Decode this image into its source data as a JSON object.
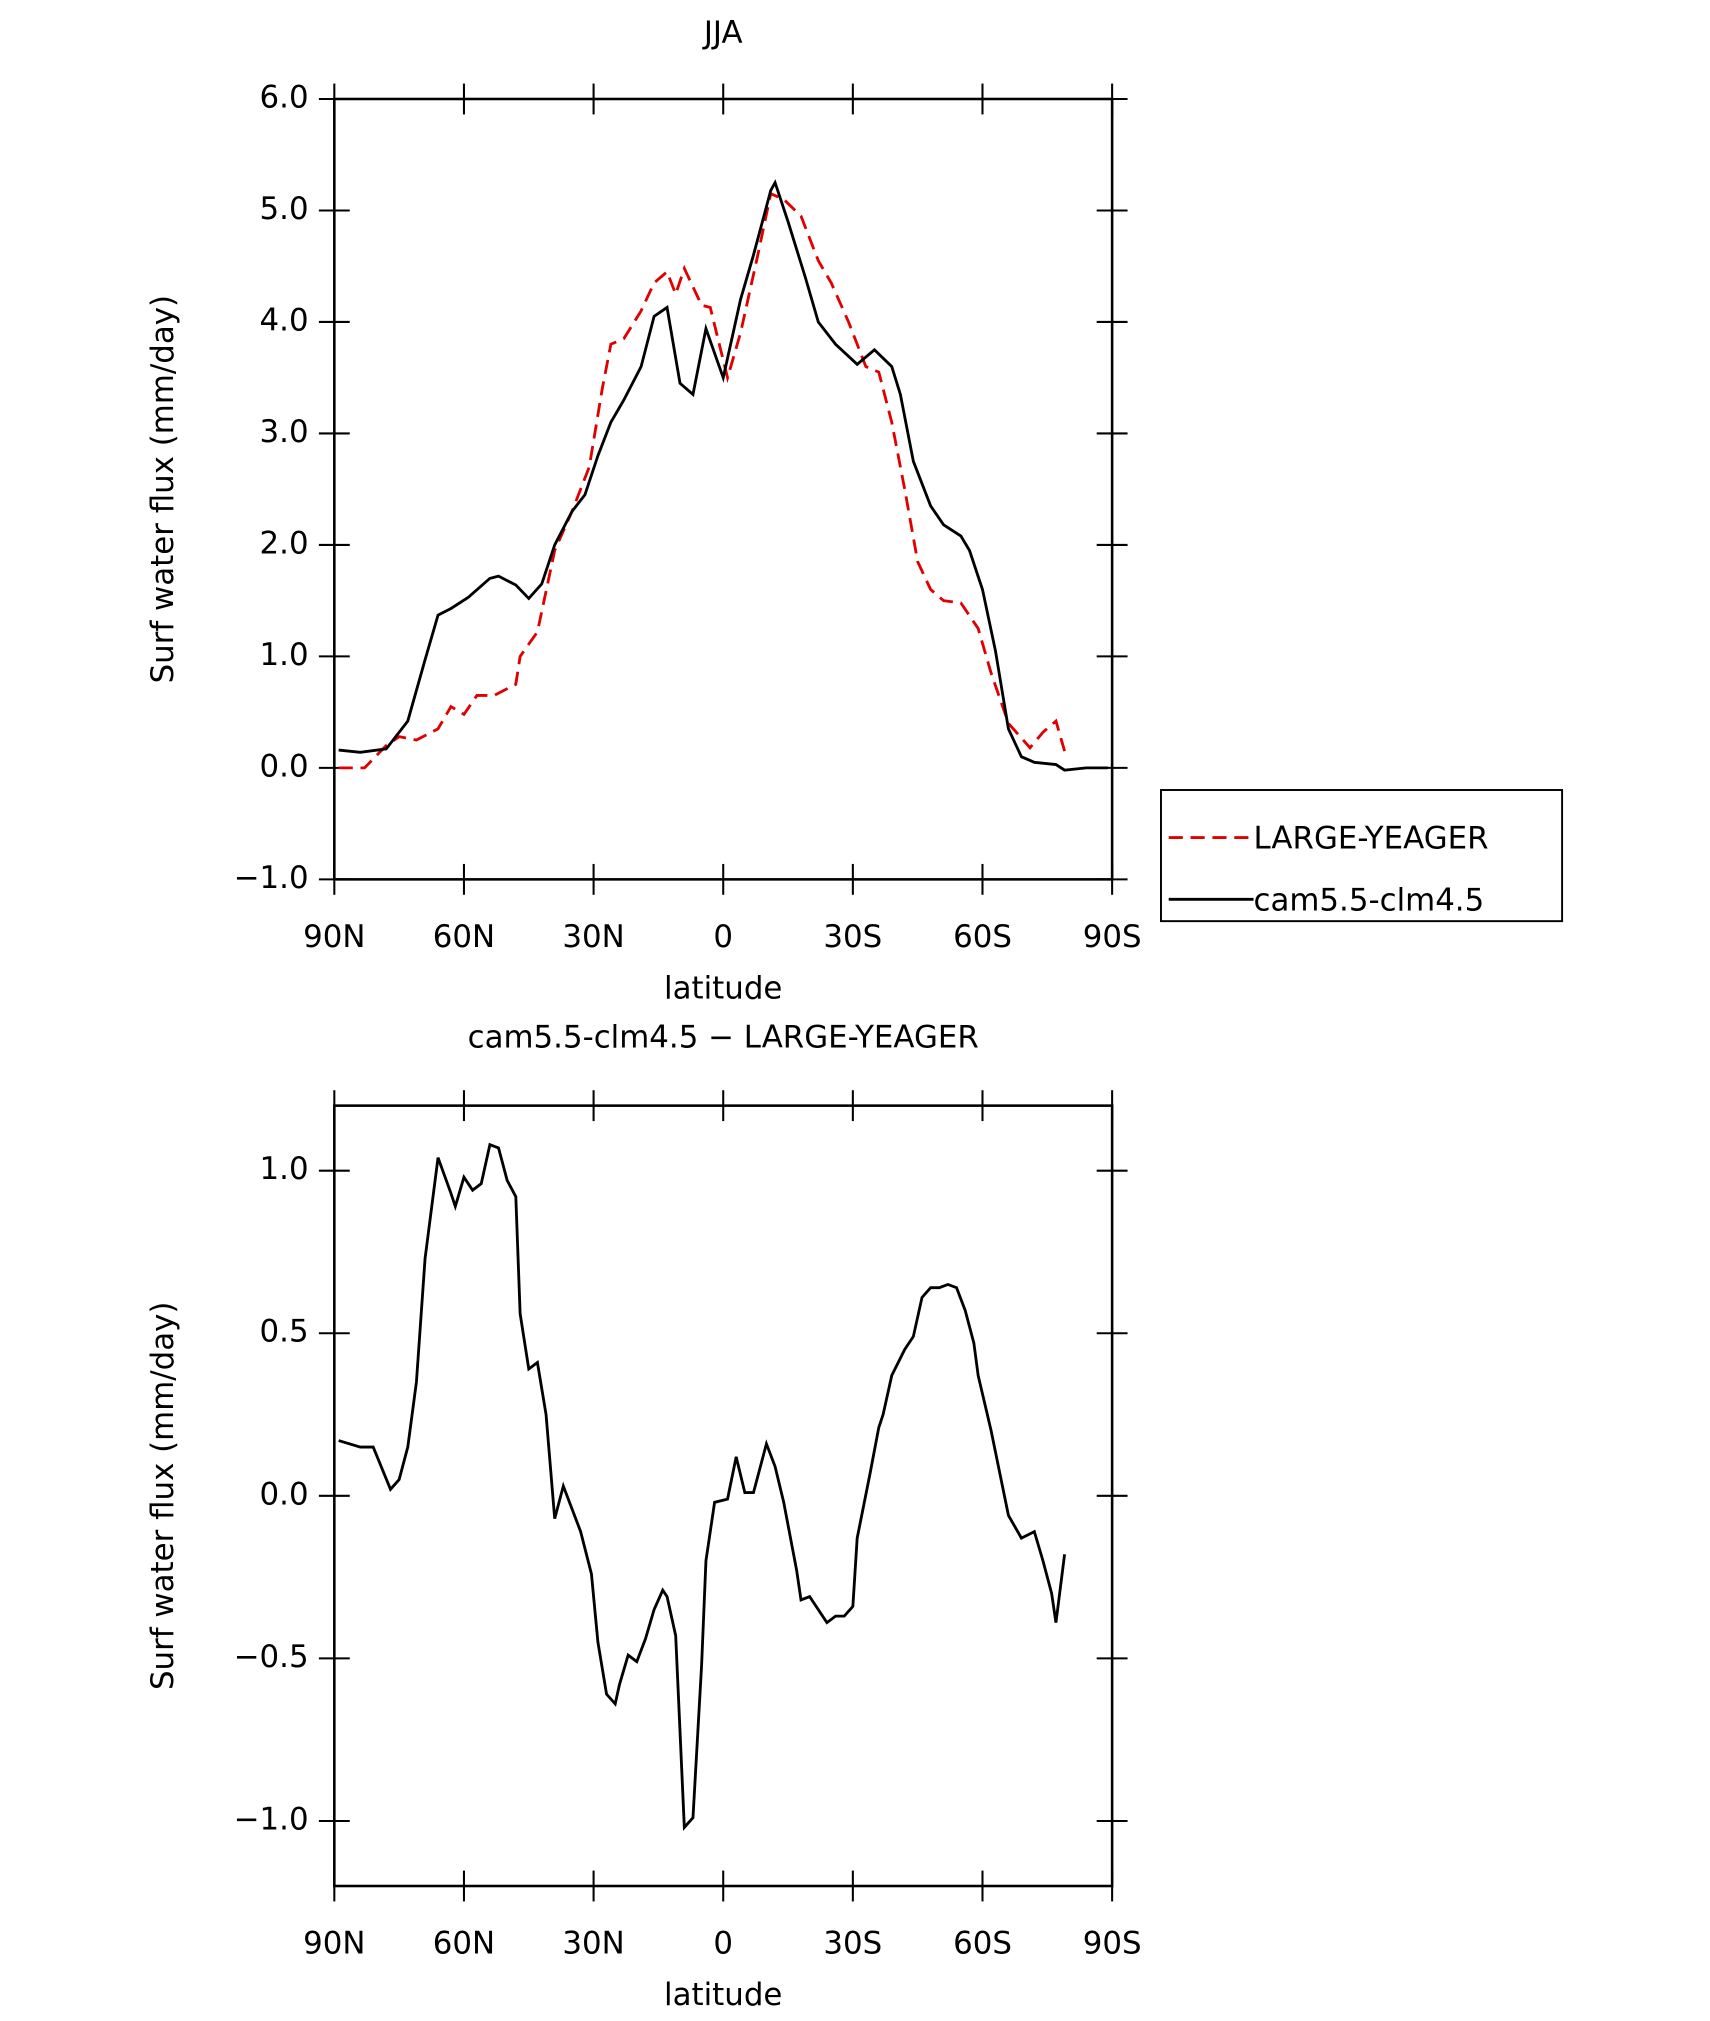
{
  "chart_data": [
    {
      "type": "line",
      "title": "JJA",
      "xlabel": "latitude",
      "ylabel": "Surf water flux (mm/day)",
      "xlim": [
        90,
        -90
      ],
      "ylim": [
        -1,
        6
      ],
      "xticks": [
        {
          "value": 90,
          "label": "90N"
        },
        {
          "value": 60,
          "label": "60N"
        },
        {
          "value": 30,
          "label": "30N"
        },
        0,
        {
          "value": -30,
          "label": "30S"
        },
        {
          "value": -60,
          "label": "60S"
        },
        {
          "value": -90,
          "label": "90S"
        }
      ],
      "yticks": [
        {
          "value": -1,
          "label": "−1.0"
        },
        {
          "value": 0,
          "label": "0.0"
        },
        {
          "value": 1,
          "label": "1.0"
        },
        {
          "value": 2,
          "label": "2.0"
        },
        {
          "value": 3,
          "label": "3.0"
        },
        {
          "value": 4,
          "label": "4.0"
        },
        {
          "value": 5,
          "label": "5.0"
        },
        {
          "value": 6,
          "label": "6.0"
        }
      ],
      "legend": "right",
      "series": [
        {
          "name": "LARGE-YEAGER",
          "color": "#e00000",
          "dashed": true,
          "x": [
            89,
            83,
            78,
            75,
            71,
            66,
            63,
            60,
            57,
            53,
            48,
            47,
            43,
            39,
            35,
            31,
            28,
            26,
            23,
            19,
            16,
            13,
            11,
            9,
            5,
            3,
            -1,
            -4,
            -8,
            -11,
            -14,
            -18,
            -22,
            -25,
            -29,
            -33,
            -36,
            -39,
            -42,
            -45,
            -48,
            -51,
            -55,
            -59,
            -62,
            -66,
            -71,
            -74,
            -77,
            -79
          ],
          "values": [
            0,
            0,
            0.2,
            0.28,
            0.25,
            0.35,
            0.55,
            0.48,
            0.65,
            0.65,
            0.75,
            1.0,
            1.22,
            1.95,
            2.3,
            2.7,
            3.4,
            3.8,
            3.85,
            4.1,
            4.35,
            4.45,
            4.25,
            4.48,
            4.15,
            4.13,
            3.5,
            3.9,
            4.6,
            5.15,
            5.1,
            4.95,
            4.55,
            4.35,
            4.0,
            3.6,
            3.55,
            3.1,
            2.5,
            1.85,
            1.6,
            1.5,
            1.48,
            1.25,
            0.85,
            0.4,
            0.18,
            0.32,
            0.42,
            0.15
          ]
        },
        {
          "name": "cam5.5-clm4.5",
          "color": "#000000",
          "dashed": false,
          "x": [
            89,
            84,
            78,
            73,
            69,
            66,
            63,
            59,
            54,
            52,
            48,
            45,
            42,
            39,
            35,
            32,
            29,
            26,
            23,
            19,
            16,
            13,
            10,
            7,
            4,
            0,
            -4,
            -7,
            -11,
            -12,
            -15,
            -19,
            -22,
            -26,
            -31,
            -35,
            -39,
            -41,
            -44,
            -48,
            -51,
            -55,
            -57,
            -60,
            -63,
            -66,
            -69,
            -72,
            -77,
            -79,
            -84,
            -89
          ],
          "values": [
            0.16,
            0.14,
            0.17,
            0.42,
            0.97,
            1.37,
            1.43,
            1.53,
            1.7,
            1.72,
            1.64,
            1.52,
            1.65,
            2.0,
            2.3,
            2.45,
            2.8,
            3.1,
            3.3,
            3.6,
            4.05,
            4.13,
            3.45,
            3.35,
            3.94,
            3.5,
            4.2,
            4.6,
            5.18,
            5.25,
            4.9,
            4.4,
            4.0,
            3.8,
            3.62,
            3.75,
            3.6,
            3.35,
            2.75,
            2.35,
            2.18,
            2.08,
            1.95,
            1.6,
            1.05,
            0.35,
            0.1,
            0.05,
            0.03,
            -0.02,
            0,
            0
          ]
        }
      ]
    },
    {
      "type": "line",
      "title": "cam5.5-clm4.5 − LARGE-YEAGER",
      "xlabel": "latitude",
      "ylabel": "Surf water flux (mm/day)",
      "xlim": [
        90,
        -90
      ],
      "ylim": [
        -1.2,
        1.2
      ],
      "xticks": [
        {
          "value": 90,
          "label": "90N"
        },
        {
          "value": 60,
          "label": "60N"
        },
        {
          "value": 30,
          "label": "30N"
        },
        0,
        {
          "value": -30,
          "label": "30S"
        },
        {
          "value": -60,
          "label": "60S"
        },
        {
          "value": -90,
          "label": "90S"
        }
      ],
      "yticks": [
        {
          "value": -1,
          "label": "−1.0"
        },
        {
          "value": -0.5,
          "label": "−0.5"
        },
        {
          "value": 0,
          "label": "0.0"
        },
        {
          "value": 0.5,
          "label": "0.5"
        },
        {
          "value": 1,
          "label": "1.0"
        }
      ],
      "series": [
        {
          "color": "#000000",
          "dashed": false,
          "x": [
            89,
            84,
            81,
            77,
            75,
            73,
            71,
            69,
            66,
            63,
            62,
            60,
            58,
            56,
            54,
            52,
            50,
            48,
            47,
            45,
            43,
            41,
            39,
            37,
            33,
            30.5,
            29,
            27,
            25,
            24,
            22,
            20,
            18,
            16,
            14,
            13,
            11,
            9,
            7,
            5,
            4,
            2,
            -1,
            -3,
            -5,
            -7,
            -10,
            -12,
            -14,
            -17,
            -18,
            -20,
            -24,
            -26,
            -28,
            -30,
            -31,
            -34,
            -36,
            -37,
            -39,
            -42,
            -44,
            -46,
            -48,
            -50,
            -52,
            -54,
            -56,
            -58,
            -59,
            -62,
            -66,
            -69,
            -72,
            -74,
            -76,
            -77,
            -79
          ],
          "values": [
            0.17,
            0.15,
            0.15,
            0.02,
            0.05,
            0.15,
            0.35,
            0.73,
            1.04,
            0.93,
            0.89,
            0.98,
            0.94,
            0.96,
            1.08,
            1.07,
            0.97,
            0.92,
            0.56,
            0.39,
            0.41,
            0.25,
            -0.07,
            0.03,
            -0.11,
            -0.24,
            -0.45,
            -0.61,
            -0.64,
            -0.58,
            -0.49,
            -0.51,
            -0.44,
            -0.35,
            -0.29,
            -0.31,
            -0.43,
            -1.02,
            -0.99,
            -0.52,
            -0.2,
            -0.02,
            -0.01,
            0.12,
            0.01,
            0.01,
            0.16,
            0.09,
            -0.02,
            -0.23,
            -0.32,
            -0.31,
            -0.39,
            -0.37,
            -0.37,
            -0.34,
            -0.13,
            0.07,
            0.21,
            0.25,
            0.37,
            0.45,
            0.49,
            0.61,
            0.64,
            0.64,
            0.65,
            0.64,
            0.57,
            0.47,
            0.37,
            0.2,
            -0.06,
            -0.13,
            -0.11,
            -0.2,
            -0.3,
            -0.39,
            -0.18
          ]
        }
      ]
    }
  ]
}
